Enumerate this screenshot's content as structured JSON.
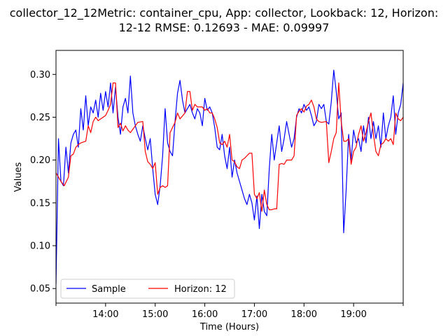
{
  "chart_data": {
    "type": "line",
    "title_line1": "collector_12_12Metric: container_cpu, App: collector, Lookback: 12, Horizon:",
    "title_line2": "12-12 RMSE: 0.12693 - MAE: 0.09997",
    "xlabel": "Time (Hours)",
    "ylabel": "Values",
    "xlim": [
      "13:00",
      "20:00"
    ],
    "ylim": [
      0.033,
      0.328
    ],
    "x_ticks": [
      "14:00",
      "15:00",
      "16:00",
      "17:00",
      "18:00",
      "19:00"
    ],
    "y_ticks": [
      0.05,
      0.1,
      0.15,
      0.2,
      0.25,
      0.3
    ],
    "y_tick_labels": [
      "0.05",
      "0.10",
      "0.15",
      "0.20",
      "0.25",
      "0.30"
    ],
    "grid": false,
    "legend": {
      "position": "lower-left",
      "columns": 2
    },
    "series": [
      {
        "name": "Sample",
        "color": "#0000ff",
        "points": [
          [
            "13:00",
            0.055
          ],
          [
            "13:03",
            0.225
          ],
          [
            "13:06",
            0.175
          ],
          [
            "13:09",
            0.17
          ],
          [
            "13:12",
            0.215
          ],
          [
            "13:15",
            0.185
          ],
          [
            "13:18",
            0.22
          ],
          [
            "13:21",
            0.23
          ],
          [
            "13:24",
            0.235
          ],
          [
            "13:27",
            0.215
          ],
          [
            "13:30",
            0.26
          ],
          [
            "13:33",
            0.235
          ],
          [
            "13:36",
            0.275
          ],
          [
            "13:39",
            0.24
          ],
          [
            "13:42",
            0.262
          ],
          [
            "13:45",
            0.255
          ],
          [
            "13:48",
            0.27
          ],
          [
            "13:51",
            0.25
          ],
          [
            "13:54",
            0.278
          ],
          [
            "13:57",
            0.258
          ],
          [
            "14:00",
            0.28
          ],
          [
            "14:03",
            0.262
          ],
          [
            "14:06",
            0.29
          ],
          [
            "14:09",
            0.255
          ],
          [
            "14:12",
            0.285
          ],
          [
            "14:15",
            0.25
          ],
          [
            "14:18",
            0.23
          ],
          [
            "14:21",
            0.262
          ],
          [
            "14:24",
            0.272
          ],
          [
            "14:27",
            0.255
          ],
          [
            "14:30",
            0.298
          ],
          [
            "14:33",
            0.255
          ],
          [
            "14:36",
            0.24
          ],
          [
            "14:39",
            0.23
          ],
          [
            "14:42",
            0.222
          ],
          [
            "14:45",
            0.24
          ],
          [
            "14:48",
            0.225
          ],
          [
            "14:51",
            0.212
          ],
          [
            "14:54",
            0.225
          ],
          [
            "14:57",
            0.19
          ],
          [
            "15:00",
            0.16
          ],
          [
            "15:03",
            0.148
          ],
          [
            "15:06",
            0.17
          ],
          [
            "15:09",
            0.205
          ],
          [
            "15:12",
            0.26
          ],
          [
            "15:15",
            0.22
          ],
          [
            "15:18",
            0.21
          ],
          [
            "15:21",
            0.205
          ],
          [
            "15:24",
            0.245
          ],
          [
            "15:27",
            0.278
          ],
          [
            "15:30",
            0.293
          ],
          [
            "15:33",
            0.27
          ],
          [
            "15:36",
            0.255
          ],
          [
            "15:39",
            0.26
          ],
          [
            "15:42",
            0.265
          ],
          [
            "15:45",
            0.255
          ],
          [
            "15:48",
            0.248
          ],
          [
            "15:51",
            0.26
          ],
          [
            "15:54",
            0.255
          ],
          [
            "15:57",
            0.24
          ],
          [
            "16:00",
            0.272
          ],
          [
            "16:03",
            0.258
          ],
          [
            "16:06",
            0.262
          ],
          [
            "16:09",
            0.255
          ],
          [
            "16:12",
            0.238
          ],
          [
            "16:15",
            0.215
          ],
          [
            "16:18",
            0.212
          ],
          [
            "16:21",
            0.23
          ],
          [
            "16:24",
            0.205
          ],
          [
            "16:27",
            0.19
          ],
          [
            "16:30",
            0.215
          ],
          [
            "16:33",
            0.18
          ],
          [
            "16:36",
            0.2
          ],
          [
            "16:39",
            0.185
          ],
          [
            "16:42",
            0.175
          ],
          [
            "16:45",
            0.165
          ],
          [
            "16:48",
            0.155
          ],
          [
            "16:51",
            0.148
          ],
          [
            "16:54",
            0.16
          ],
          [
            "16:57",
            0.15
          ],
          [
            "17:00",
            0.13
          ],
          [
            "17:03",
            0.158
          ],
          [
            "17:06",
            0.12
          ],
          [
            "17:09",
            0.16
          ],
          [
            "17:12",
            0.14
          ],
          [
            "17:15",
            0.135
          ],
          [
            "17:18",
            0.19
          ],
          [
            "17:21",
            0.23
          ],
          [
            "17:24",
            0.2
          ],
          [
            "17:27",
            0.22
          ],
          [
            "17:30",
            0.24
          ],
          [
            "17:33",
            0.21
          ],
          [
            "17:36",
            0.225
          ],
          [
            "17:39",
            0.245
          ],
          [
            "17:42",
            0.23
          ],
          [
            "17:45",
            0.215
          ],
          [
            "17:48",
            0.225
          ],
          [
            "17:51",
            0.25
          ],
          [
            "17:54",
            0.26
          ],
          [
            "17:57",
            0.255
          ],
          [
            "18:00",
            0.265
          ],
          [
            "18:03",
            0.258
          ],
          [
            "18:06",
            0.262
          ],
          [
            "18:09",
            0.252
          ],
          [
            "18:12",
            0.24
          ],
          [
            "18:15",
            0.245
          ],
          [
            "18:18",
            0.265
          ],
          [
            "18:21",
            0.26
          ],
          [
            "18:24",
            0.265
          ],
          [
            "18:27",
            0.245
          ],
          [
            "18:30",
            0.242
          ],
          [
            "18:33",
            0.268
          ],
          [
            "18:36",
            0.305
          ],
          [
            "18:39",
            0.28
          ],
          [
            "18:42",
            0.248
          ],
          [
            "18:45",
            0.255
          ],
          [
            "18:48",
            0.115
          ],
          [
            "18:51",
            0.165
          ],
          [
            "18:54",
            0.23
          ],
          [
            "18:57",
            0.2
          ],
          [
            "19:00",
            0.235
          ],
          [
            "19:03",
            0.22
          ],
          [
            "19:06",
            0.225
          ],
          [
            "19:09",
            0.21
          ],
          [
            "19:12",
            0.24
          ],
          [
            "19:15",
            0.22
          ],
          [
            "19:18",
            0.25
          ],
          [
            "19:21",
            0.225
          ],
          [
            "19:24",
            0.245
          ],
          [
            "19:27",
            0.225
          ],
          [
            "19:30",
            0.24
          ],
          [
            "19:33",
            0.215
          ],
          [
            "19:36",
            0.255
          ],
          [
            "19:39",
            0.225
          ],
          [
            "19:42",
            0.24
          ],
          [
            "19:45",
            0.25
          ],
          [
            "19:48",
            0.275
          ],
          [
            "19:51",
            0.23
          ],
          [
            "19:54",
            0.255
          ],
          [
            "19:57",
            0.265
          ],
          [
            "20:00",
            0.29
          ]
        ]
      },
      {
        "name": "Horizon: 12",
        "color": "#ff0000",
        "points": [
          [
            "13:00",
            0.185
          ],
          [
            "13:06",
            0.175
          ],
          [
            "13:10",
            0.17
          ],
          [
            "13:15",
            0.18
          ],
          [
            "13:18",
            0.205
          ],
          [
            "13:21",
            0.207
          ],
          [
            "13:24",
            0.215
          ],
          [
            "13:27",
            0.218
          ],
          [
            "13:30",
            0.22
          ],
          [
            "13:36",
            0.222
          ],
          [
            "13:39",
            0.24
          ],
          [
            "13:42",
            0.232
          ],
          [
            "13:45",
            0.245
          ],
          [
            "13:48",
            0.25
          ],
          [
            "13:51",
            0.246
          ],
          [
            "13:54",
            0.248
          ],
          [
            "14:00",
            0.252
          ],
          [
            "14:03",
            0.258
          ],
          [
            "14:06",
            0.265
          ],
          [
            "14:09",
            0.29
          ],
          [
            "14:12",
            0.29
          ],
          [
            "14:15",
            0.238
          ],
          [
            "14:18",
            0.243
          ],
          [
            "14:21",
            0.234
          ],
          [
            "14:24",
            0.24
          ],
          [
            "14:27",
            0.235
          ],
          [
            "14:30",
            0.232
          ],
          [
            "14:36",
            0.24
          ],
          [
            "14:39",
            0.244
          ],
          [
            "14:45",
            0.245
          ],
          [
            "14:48",
            0.21
          ],
          [
            "14:51",
            0.198
          ],
          [
            "14:54",
            0.195
          ],
          [
            "14:57",
            0.19
          ],
          [
            "15:00",
            0.197
          ],
          [
            "15:03",
            0.16
          ],
          [
            "15:06",
            0.168
          ],
          [
            "15:09",
            0.17
          ],
          [
            "15:12",
            0.168
          ],
          [
            "15:15",
            0.17
          ],
          [
            "15:18",
            0.232
          ],
          [
            "15:21",
            0.238
          ],
          [
            "15:24",
            0.244
          ],
          [
            "15:27",
            0.255
          ],
          [
            "15:30",
            0.248
          ],
          [
            "15:36",
            0.255
          ],
          [
            "15:39",
            0.28
          ],
          [
            "15:42",
            0.28
          ],
          [
            "15:45",
            0.258
          ],
          [
            "15:48",
            0.265
          ],
          [
            "15:51",
            0.262
          ],
          [
            "15:57",
            0.262
          ],
          [
            "16:00",
            0.258
          ],
          [
            "16:03",
            0.26
          ],
          [
            "16:06",
            0.255
          ],
          [
            "16:09",
            0.255
          ],
          [
            "16:12",
            0.248
          ],
          [
            "16:15",
            0.238
          ],
          [
            "16:18",
            0.22
          ],
          [
            "16:21",
            0.218
          ],
          [
            "16:24",
            0.222
          ],
          [
            "16:27",
            0.215
          ],
          [
            "16:30",
            0.23
          ],
          [
            "16:33",
            0.2
          ],
          [
            "16:36",
            0.198
          ],
          [
            "16:39",
            0.192
          ],
          [
            "16:42",
            0.19
          ],
          [
            "16:45",
            0.2
          ],
          [
            "16:48",
            0.202
          ],
          [
            "16:51",
            0.205
          ],
          [
            "16:54",
            0.208
          ],
          [
            "16:57",
            0.208
          ],
          [
            "17:00",
            0.16
          ],
          [
            "17:03",
            0.155
          ],
          [
            "17:06",
            0.162
          ],
          [
            "17:09",
            0.14
          ],
          [
            "17:12",
            0.165
          ],
          [
            "17:15",
            0.148
          ],
          [
            "17:18",
            0.142
          ],
          [
            "17:21",
            0.142
          ],
          [
            "17:24",
            0.143
          ],
          [
            "17:27",
            0.143
          ],
          [
            "17:30",
            0.195
          ],
          [
            "17:33",
            0.196
          ],
          [
            "17:36",
            0.195
          ],
          [
            "17:39",
            0.2
          ],
          [
            "17:45",
            0.2
          ],
          [
            "17:48",
            0.205
          ],
          [
            "17:51",
            0.252
          ],
          [
            "17:54",
            0.257
          ],
          [
            "17:57",
            0.26
          ],
          [
            "18:00",
            0.256
          ],
          [
            "18:03",
            0.263
          ],
          [
            "18:06",
            0.265
          ],
          [
            "18:09",
            0.27
          ],
          [
            "18:12",
            0.262
          ],
          [
            "18:15",
            0.248
          ],
          [
            "18:18",
            0.245
          ],
          [
            "18:21",
            0.244
          ],
          [
            "18:27",
            0.245
          ],
          [
            "18:30",
            0.197
          ],
          [
            "18:33",
            0.21
          ],
          [
            "18:36",
            0.225
          ],
          [
            "18:39",
            0.232
          ],
          [
            "18:42",
            0.29
          ],
          [
            "18:45",
            0.245
          ],
          [
            "18:48",
            0.222
          ],
          [
            "18:51",
            0.222
          ],
          [
            "18:54",
            0.225
          ],
          [
            "18:57",
            0.195
          ],
          [
            "19:00",
            0.21
          ],
          [
            "19:03",
            0.215
          ],
          [
            "19:06",
            0.23
          ],
          [
            "19:09",
            0.24
          ],
          [
            "19:12",
            0.222
          ],
          [
            "19:15",
            0.232
          ],
          [
            "19:18",
            0.245
          ],
          [
            "19:21",
            0.255
          ],
          [
            "19:24",
            0.23
          ],
          [
            "19:27",
            0.21
          ],
          [
            "19:30",
            0.205
          ],
          [
            "19:33",
            0.218
          ],
          [
            "19:36",
            0.22
          ],
          [
            "19:39",
            0.225
          ],
          [
            "19:42",
            0.222
          ],
          [
            "19:45",
            0.225
          ],
          [
            "19:48",
            0.218
          ],
          [
            "19:51",
            0.255
          ],
          [
            "19:54",
            0.248
          ],
          [
            "19:57",
            0.246
          ],
          [
            "20:00",
            0.25
          ]
        ]
      }
    ]
  }
}
